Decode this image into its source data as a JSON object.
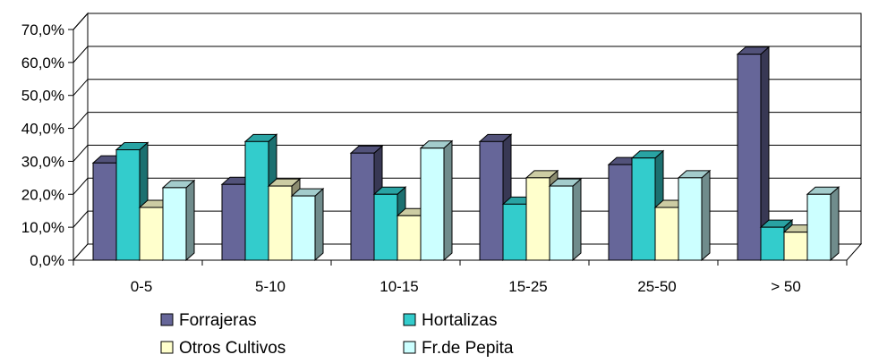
{
  "chart_data": {
    "type": "bar",
    "title": "",
    "xlabel": "",
    "ylabel": "",
    "categories": [
      "0-5",
      "5-10",
      "10-15",
      "15-25",
      "25-50",
      "> 50"
    ],
    "ylim": [
      0,
      70
    ],
    "yticks": [
      "0,0%",
      "10,0%",
      "20,0%",
      "30,0%",
      "40,0%",
      "50,0%",
      "60,0%",
      "70,0%"
    ],
    "grid": true,
    "three_d": true,
    "legend_position": "bottom",
    "series": [
      {
        "name": "Forrajeras",
        "color": "#666699",
        "values": [
          29.5,
          23.0,
          32.5,
          36.0,
          29.0,
          62.5
        ]
      },
      {
        "name": "Hortalizas",
        "color": "#33CCCC",
        "values": [
          33.5,
          36.0,
          20.0,
          17.0,
          31.0,
          10.0
        ]
      },
      {
        "name": "Otros Cultivos",
        "color": "#FFFFCC",
        "values": [
          16.0,
          22.5,
          13.5,
          25.0,
          16.0,
          8.5
        ]
      },
      {
        "name": "Fr.de Pepita",
        "color": "#CCFFFF",
        "values": [
          22.0,
          19.5,
          34.0,
          22.5,
          25.0,
          20.0
        ]
      }
    ]
  }
}
